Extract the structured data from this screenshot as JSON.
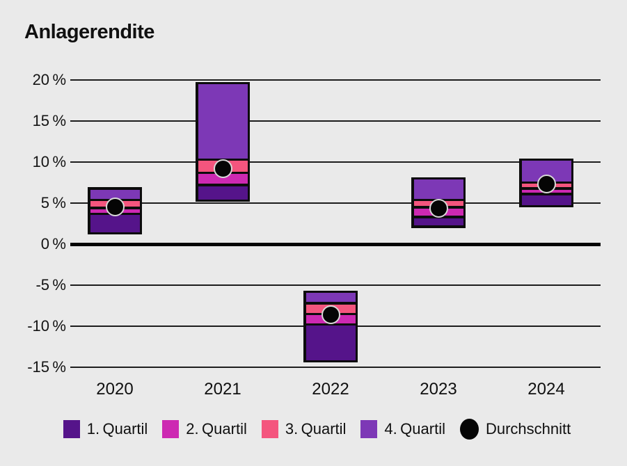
{
  "title": "Anlagerendite",
  "colors": {
    "background": "#eaeaea",
    "outline": "#0c0c0c",
    "gridline": "#1c1c1c",
    "zero_line": "#050505",
    "quartil_1": "#55148a",
    "quartil_2": "#cd29b2",
    "quartil_3": "#f4557e",
    "quartil_4": "#7d38b6",
    "durchschnitt": "#050505",
    "dot_ring": "#d8d8d8",
    "text": "#101010"
  },
  "chart_data": {
    "type": "boxplot-quartiles",
    "title": "Anlagerendite",
    "unit": "%",
    "grid": "on",
    "legend_position": "bottom",
    "ylim": [
      -15,
      20
    ],
    "yticks": [
      20,
      15,
      10,
      5,
      0,
      -5,
      -10,
      -15
    ],
    "ytick_labels": [
      "20 %",
      "15 %",
      "10 %",
      "5 %",
      "0 %",
      "-5 %",
      "-10 %",
      "-15 %"
    ],
    "categories": [
      "2020",
      "2021",
      "2022",
      "2023",
      "2024"
    ],
    "series": [
      {
        "year": "2020",
        "min": 1.3,
        "q25": 3.7,
        "median": 4.4,
        "q75": 5.4,
        "max": 6.8,
        "avg": 4.5
      },
      {
        "year": "2021",
        "min": 5.3,
        "q25": 7.2,
        "median": 8.7,
        "q75": 10.3,
        "max": 19.6,
        "avg": 9.2
      },
      {
        "year": "2022",
        "min": -14.3,
        "q25": -9.8,
        "median": -8.5,
        "q75": -7.2,
        "max": -5.8,
        "avg": -8.6
      },
      {
        "year": "2023",
        "min": 2.1,
        "q25": 3.3,
        "median": 4.5,
        "q75": 5.4,
        "max": 8.0,
        "avg": 4.4
      },
      {
        "year": "2024",
        "min": 4.6,
        "q25": 6.1,
        "median": 6.8,
        "q75": 7.5,
        "max": 10.3,
        "avg": 7.3
      }
    ],
    "legend": [
      {
        "label": "1. Quartil",
        "color": "#55148a",
        "shape": "square"
      },
      {
        "label": "2. Quartil",
        "color": "#cd29b2",
        "shape": "square"
      },
      {
        "label": "3. Quartil",
        "color": "#f4557e",
        "shape": "square"
      },
      {
        "label": "4. Quartil",
        "color": "#7d38b6",
        "shape": "square"
      },
      {
        "label": "Durchschnitt",
        "color": "#050505",
        "shape": "circle"
      }
    ]
  }
}
